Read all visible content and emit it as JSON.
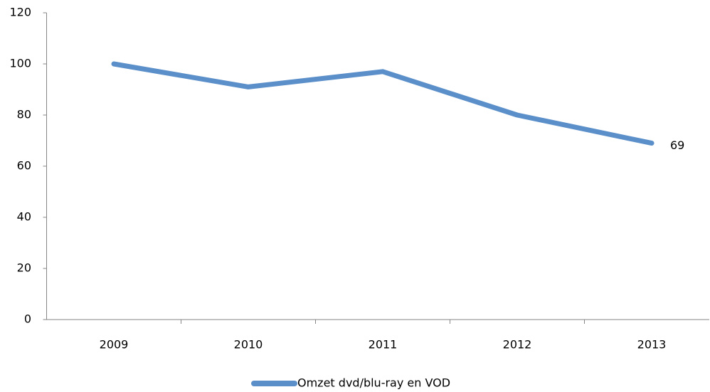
{
  "chart_data": {
    "type": "line",
    "categories": [
      "2009",
      "2010",
      "2011",
      "2012",
      "2013"
    ],
    "series": [
      {
        "name": "Omzet dvd/blu-ray en VOD",
        "color": "#5b8fc9",
        "values": [
          100,
          91,
          97,
          80,
          69
        ]
      }
    ],
    "ylim": [
      0,
      120
    ],
    "yticks": [
      0,
      20,
      40,
      60,
      80,
      100,
      120
    ],
    "grid": false,
    "legend": "bottom"
  }
}
